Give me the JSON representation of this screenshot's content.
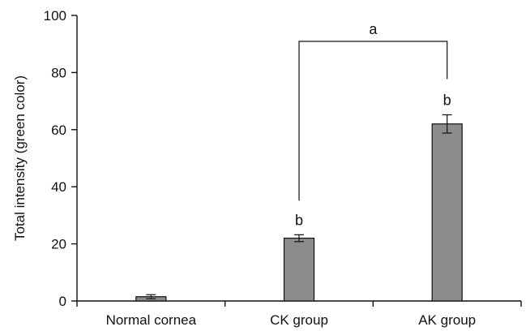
{
  "chart_data": {
    "type": "bar",
    "title": "",
    "xlabel": "",
    "ylabel": "Total intensity (green color)",
    "categories": [
      "Normal cornea",
      "CK group",
      "AK group"
    ],
    "values": [
      1.5,
      22,
      62
    ],
    "errors": [
      0.7,
      1.2,
      3.2
    ],
    "ylim": [
      0,
      100
    ],
    "yticks": [
      0,
      20,
      40,
      60,
      80,
      100
    ],
    "bar_labels": [
      "",
      "b",
      "b"
    ],
    "bracket": {
      "from": "CK group",
      "to": "AK group",
      "label": "a"
    },
    "bar_color": "#8c8c8c",
    "grid": false,
    "legend": "none"
  }
}
